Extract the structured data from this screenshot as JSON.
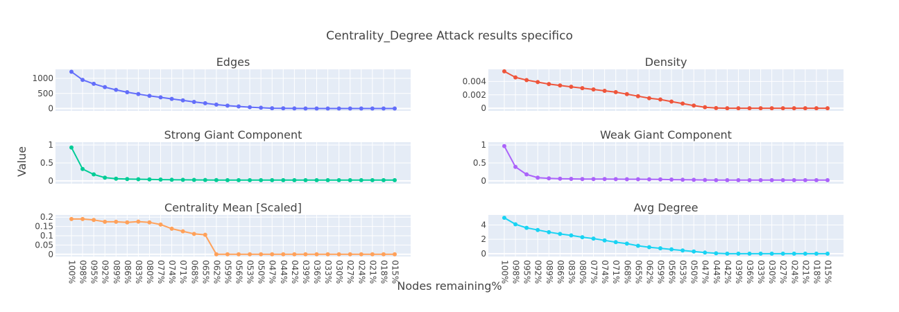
{
  "chart_data": {
    "title": "Centrality_Degree Attack results specifico",
    "xlabel": "Nodes remaining%",
    "ylabel": "Value",
    "x": [
      "100%",
      "098%",
      "095%",
      "092%",
      "089%",
      "086%",
      "083%",
      "080%",
      "077%",
      "074%",
      "071%",
      "068%",
      "065%",
      "062%",
      "059%",
      "056%",
      "053%",
      "050%",
      "047%",
      "044%",
      "042%",
      "039%",
      "036%",
      "033%",
      "030%",
      "027%",
      "024%",
      "021%",
      "018%",
      "015%"
    ],
    "subplots": [
      {
        "type": "line",
        "title": "Edges",
        "color": "#636efa",
        "yticks": [
          0,
          500,
          1000
        ],
        "yticklabels": [
          "0",
          "500",
          "1000"
        ],
        "ylim": [
          -80,
          1300
        ],
        "values": [
          1220,
          950,
          820,
          710,
          620,
          540,
          480,
          420,
          370,
          320,
          270,
          220,
          175,
          130,
          95,
          70,
          45,
          25,
          10,
          5,
          2,
          1,
          0,
          0,
          0,
          0,
          0,
          0,
          0,
          0
        ]
      },
      {
        "type": "line",
        "title": "Density",
        "color": "#ef553b",
        "yticks": [
          0,
          0.002,
          0.004
        ],
        "yticklabels": [
          "0",
          "0.002",
          "0.004"
        ],
        "ylim": [
          -0.0004,
          0.0058
        ],
        "values": [
          0.0055,
          0.0046,
          0.0042,
          0.0039,
          0.0036,
          0.0034,
          0.0032,
          0.003,
          0.0028,
          0.0026,
          0.0024,
          0.0021,
          0.0018,
          0.0015,
          0.0013,
          0.001,
          0.0007,
          0.0004,
          0.00015,
          3e-05,
          0,
          0,
          0,
          0,
          0,
          0,
          0,
          0,
          0,
          0
        ]
      },
      {
        "type": "line",
        "title": "Strong Giant Component",
        "color": "#00cc96",
        "yticks": [
          0,
          0.5,
          1
        ],
        "yticklabels": [
          "0",
          "0.5",
          "1"
        ],
        "ylim": [
          -0.08,
          1.08
        ],
        "values": [
          0.93,
          0.33,
          0.18,
          0.09,
          0.06,
          0.05,
          0.045,
          0.04,
          0.035,
          0.03,
          0.028,
          0.026,
          0.024,
          0.022,
          0.02,
          0.02,
          0.02,
          0.02,
          0.02,
          0.02,
          0.02,
          0.02,
          0.02,
          0.02,
          0.02,
          0.02,
          0.02,
          0.02,
          0.02,
          0.02
        ]
      },
      {
        "type": "line",
        "title": "Weak Giant Component",
        "color": "#ab63fa",
        "yticks": [
          0,
          0.5,
          1
        ],
        "yticklabels": [
          "0",
          "0.5",
          "1"
        ],
        "ylim": [
          -0.08,
          1.08
        ],
        "values": [
          0.97,
          0.39,
          0.18,
          0.09,
          0.07,
          0.06,
          0.055,
          0.05,
          0.05,
          0.05,
          0.048,
          0.046,
          0.045,
          0.043,
          0.04,
          0.035,
          0.03,
          0.028,
          0.025,
          0.02,
          0.02,
          0.02,
          0.02,
          0.02,
          0.02,
          0.02,
          0.02,
          0.02,
          0.02,
          0.02
        ]
      },
      {
        "type": "line",
        "title": "Centrality Mean [Scaled]",
        "color": "#ffa15a",
        "yticks": [
          0,
          0.05,
          0.1,
          0.15,
          0.2
        ],
        "yticklabels": [
          "0",
          "0.05",
          "0.1",
          "0.15",
          "0.2"
        ],
        "ylim": [
          -0.012,
          0.212
        ],
        "values": [
          0.19,
          0.19,
          0.185,
          0.175,
          0.175,
          0.172,
          0.176,
          0.172,
          0.16,
          0.138,
          0.124,
          0.11,
          0.105,
          0,
          0,
          0,
          0,
          0,
          0,
          0,
          0,
          0,
          0,
          0,
          0,
          0,
          0,
          0,
          0,
          0
        ]
      },
      {
        "type": "line",
        "title": "Avg Degree",
        "color": "#19d3f3",
        "yticks": [
          0,
          2,
          4
        ],
        "yticklabels": [
          "0",
          "2",
          "4"
        ],
        "ylim": [
          -0.4,
          5.4
        ],
        "values": [
          5.0,
          4.1,
          3.6,
          3.3,
          3.0,
          2.75,
          2.55,
          2.3,
          2.1,
          1.85,
          1.6,
          1.4,
          1.1,
          0.9,
          0.75,
          0.6,
          0.45,
          0.3,
          0.15,
          0.05,
          0,
          0,
          0,
          0,
          0,
          0,
          0,
          0,
          0,
          0
        ]
      }
    ]
  }
}
